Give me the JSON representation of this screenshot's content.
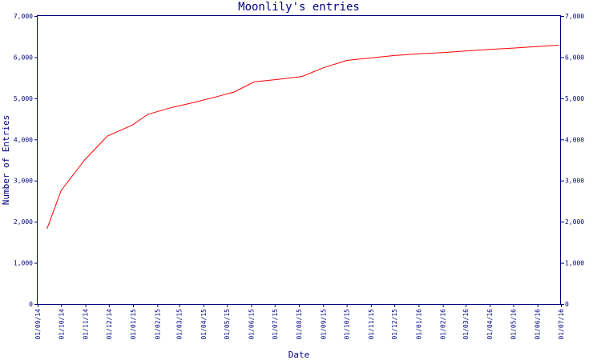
{
  "chart_data": {
    "type": "line",
    "title": "Moonlily's entries",
    "xlabel": "Date",
    "ylabel": "Number of Entries",
    "ylim": [
      0,
      7000
    ],
    "grid": false,
    "y_ticks_left": [
      "0",
      "1,000",
      "2,000",
      "3,000",
      "4,000",
      "5,000",
      "6,000",
      "7,000"
    ],
    "y_ticks_right": [
      "0",
      "1,000",
      "2,000",
      "3,000",
      "4,000",
      "5,000",
      "6,000",
      "7,000"
    ],
    "x_ticks": [
      "01/09/14",
      "01/10/14",
      "01/11/14",
      "01/12/14",
      "01/01/15",
      "01/02/15",
      "01/03/15",
      "01/04/15",
      "01/05/15",
      "01/06/15",
      "01/07/15",
      "01/08/15",
      "01/09/15",
      "01/10/15",
      "01/11/15",
      "01/12/15",
      "01/01/16",
      "01/02/16",
      "01/03/16",
      "01/04/16",
      "01/05/16",
      "01/06/16",
      "01/07/16"
    ],
    "x": [
      "2014-09-13",
      "2014-10-01",
      "2014-10-31",
      "2014-11-29",
      "2014-12-31",
      "2015-01-20",
      "2015-02-20",
      "2015-03-20",
      "2015-04-20",
      "2015-05-10",
      "2015-06-05",
      "2015-07-05",
      "2015-08-05",
      "2015-09-01",
      "2015-10-01",
      "2015-10-31",
      "2015-12-01",
      "2016-01-01",
      "2016-02-01",
      "2016-03-01",
      "2016-04-01",
      "2016-05-01",
      "2016-06-01",
      "2016-06-28"
    ],
    "series": [
      {
        "color": "#ff0000",
        "values": [
          1830,
          2760,
          3500,
          4080,
          4350,
          4610,
          4780,
          4900,
          5050,
          5150,
          5400,
          5460,
          5530,
          5740,
          5920,
          5980,
          6040,
          6080,
          6110,
          6150,
          6190,
          6220,
          6260,
          6290
        ]
      }
    ]
  }
}
